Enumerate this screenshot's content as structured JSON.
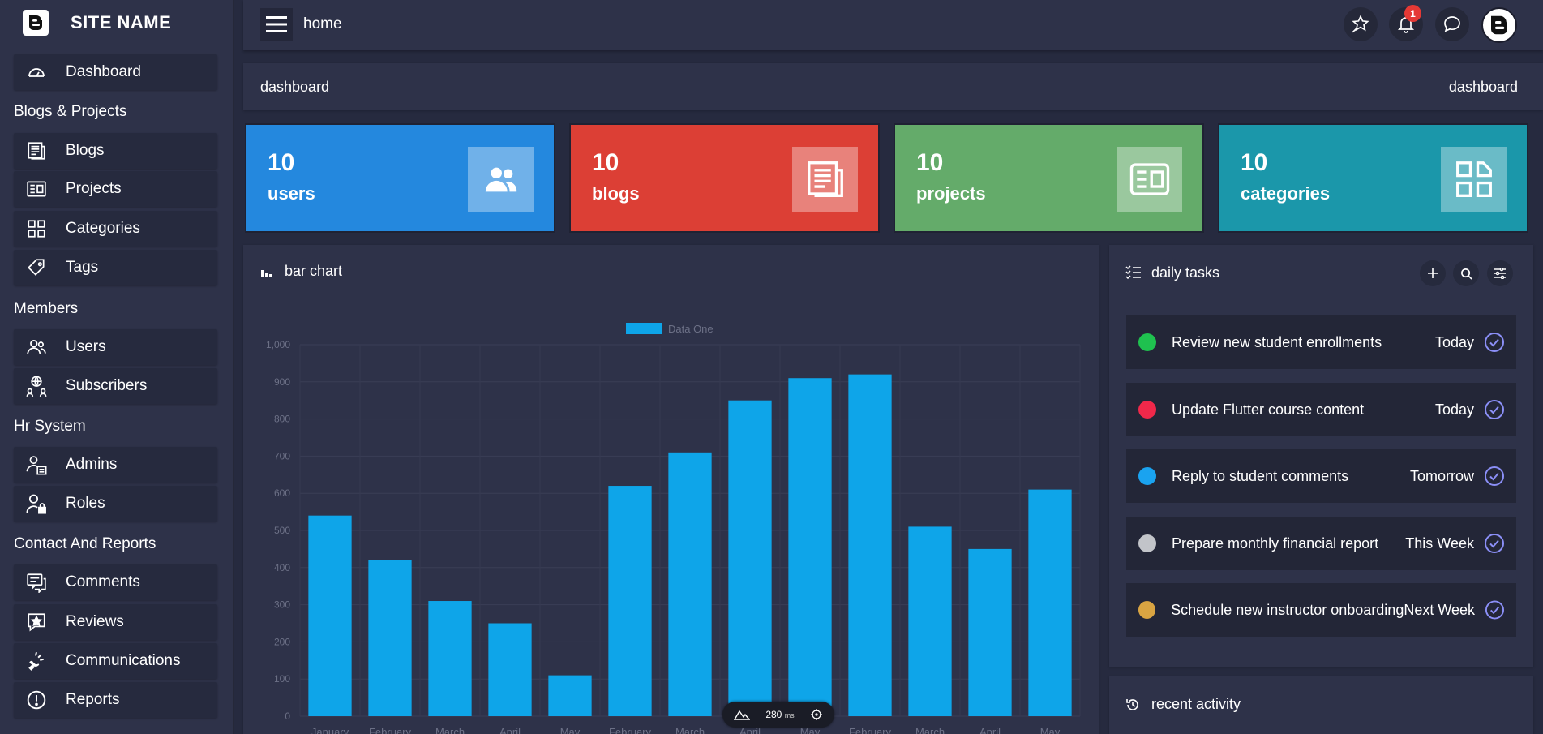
{
  "sidebar": {
    "site_name": "SITE NAME",
    "items": {
      "dashboard": "Dashboard",
      "blogs": "Blogs",
      "projects": "Projects",
      "categories": "Categories",
      "tags": "Tags",
      "users": "Users",
      "subscribers": "Subscribers",
      "admins": "Admins",
      "roles": "Roles",
      "comments": "Comments",
      "reviews": "Reviews",
      "communications": "Communications",
      "reports": "Reports"
    },
    "sections": {
      "blogs_projects": "Blogs & Projects",
      "members": "Members",
      "hr": "Hr System",
      "contact": "Contact And Reports"
    }
  },
  "topbar": {
    "title": "home",
    "notification_count": "1"
  },
  "breadcrumb": {
    "left": "dashboard",
    "right": "dashboard"
  },
  "stats": [
    {
      "value": "10",
      "label": "users",
      "color": "#2488de",
      "icon": "users-icon"
    },
    {
      "value": "10",
      "label": "blogs",
      "color": "#dc3f35",
      "icon": "blogs-icon"
    },
    {
      "value": "10",
      "label": "projects",
      "color": "#64ab6a",
      "icon": "projects-icon"
    },
    {
      "value": "10",
      "label": "categories",
      "color": "#1b97aa",
      "icon": "categories-icon"
    }
  ],
  "chart_panel": {
    "title": "bar chart"
  },
  "chart_data": {
    "type": "bar",
    "categories": [
      "January",
      "February",
      "March",
      "April",
      "May",
      "February",
      "March",
      "April",
      "May",
      "February",
      "March",
      "April",
      "May"
    ],
    "series": [
      {
        "name": "Data One",
        "values": [
          540,
          420,
          310,
          250,
          110,
          620,
          710,
          850,
          910,
          920,
          510,
          450,
          610
        ],
        "color": "#0ea5e9"
      }
    ],
    "ylim": [
      0,
      1000
    ],
    "yticks": [
      "0",
      "100",
      "200",
      "300",
      "400",
      "500",
      "600",
      "700",
      "800",
      "900",
      "1,000"
    ],
    "grid": true,
    "legend": "top-center"
  },
  "perf": {
    "value": "280",
    "unit": "ms"
  },
  "tasks": {
    "title": "daily tasks",
    "items": [
      {
        "title": "Review new student enrollments",
        "due": "Today",
        "color": "#1fc14f"
      },
      {
        "title": "Update Flutter course content",
        "due": "Today",
        "color": "#f0284a"
      },
      {
        "title": "Reply to student comments",
        "due": "Tomorrow",
        "color": "#1aa3f0"
      },
      {
        "title": "Prepare monthly financial report",
        "due": "This Week",
        "color": "#c2c4c9"
      },
      {
        "title": "Schedule new instructor onboarding",
        "due": "Next Week",
        "color": "#d9a442"
      }
    ]
  },
  "recent": {
    "title": "recent activity"
  }
}
